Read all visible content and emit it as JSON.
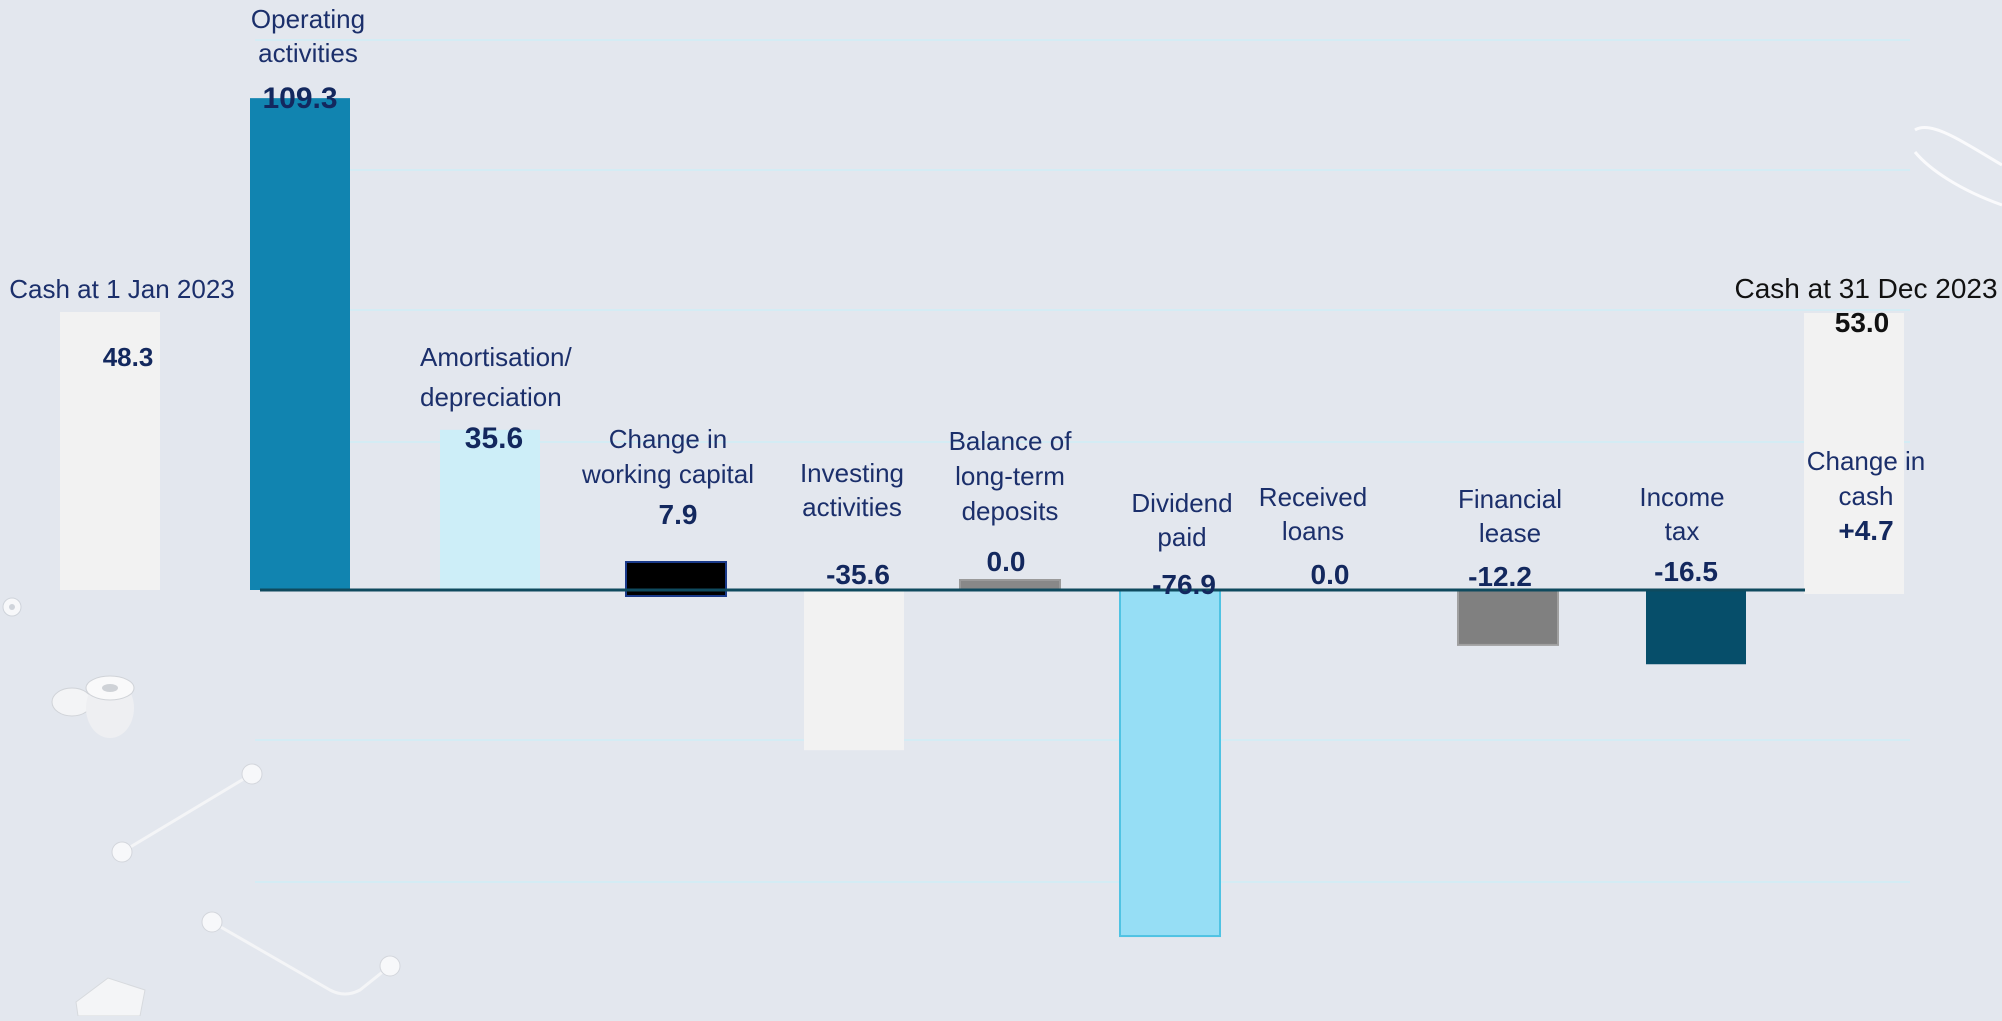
{
  "chart_data": {
    "type": "bar",
    "subtype": "waterfall",
    "categories": [
      "Cash at 1 Jan 2023",
      "Operating activities",
      "Amortisation/ depreciation",
      "Change in working capital",
      "Investing activities",
      "Balance of long-term deposits",
      "Dividend paid",
      "Received loans",
      "Financial lease",
      "Income tax",
      "Cash at 31 Dec 2023"
    ],
    "values": [
      48.3,
      109.3,
      35.6,
      7.9,
      -35.6,
      0.0,
      -76.9,
      0.0,
      -12.2,
      -16.5,
      53.0
    ],
    "value_labels": [
      "48.3",
      "109.3",
      "35.6",
      "7.9",
      "-35.6",
      "0.0",
      "-76.9",
      "0.0",
      "-12.2",
      "-16.5",
      "53.0"
    ],
    "label_lines": [
      [
        "Cash at 1 Jan 2023"
      ],
      [
        "Operating",
        "activities"
      ],
      [
        "Amortisation/",
        "depreciation"
      ],
      [
        "Change in",
        "working capital"
      ],
      [
        "Investing",
        "activities"
      ],
      [
        "Balance of",
        "long-term",
        "deposits"
      ],
      [
        "Dividend",
        "paid"
      ],
      [
        "Received",
        "loans"
      ],
      [
        "Financial",
        "lease"
      ],
      [
        "Income",
        "tax"
      ],
      [
        "Cash at 31 Dec 2023"
      ]
    ],
    "change_label_lines": [
      "Change in",
      "cash"
    ],
    "change_value": "+4.7",
    "colors": [
      "#f2f2f2",
      "#1184b0",
      "#cdeef8",
      "#000000",
      "#f2f2f2",
      "#888888",
      "#96def5",
      "#e3e7ee",
      "#808080",
      "#064e6a",
      "#f2f2f2"
    ],
    "axis_color": "#0f4a5e",
    "gridlines": true
  }
}
